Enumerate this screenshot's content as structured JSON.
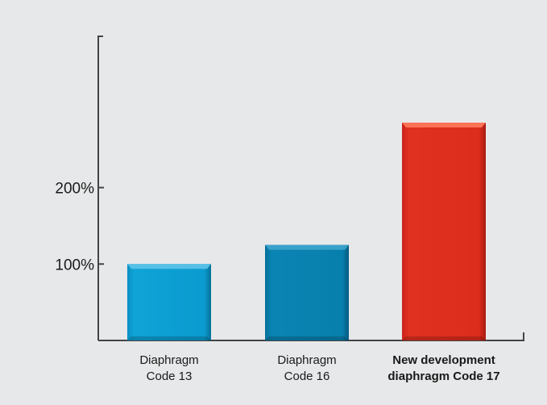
{
  "chart_data": {
    "type": "bar",
    "categories": [
      [
        "Diaphragm",
        "Code 13"
      ],
      [
        "Diaphragm",
        "Code 16"
      ],
      [
        "New development",
        "diaphragm Code 17"
      ]
    ],
    "values": [
      100,
      125,
      285
    ],
    "highlight_index": 2,
    "ylim": [
      0,
      380
    ],
    "yticks": [
      {
        "value": 100,
        "label": "100%"
      },
      {
        "value": 200,
        "label": "200%"
      }
    ],
    "grid": false,
    "legend": "none",
    "colors": {
      "bar_default": "#0099cc",
      "bar_secondary": "#0081b0",
      "bar_highlight": "#dd2a1b",
      "axis": "#444444",
      "background": "#e7e8e9"
    }
  }
}
